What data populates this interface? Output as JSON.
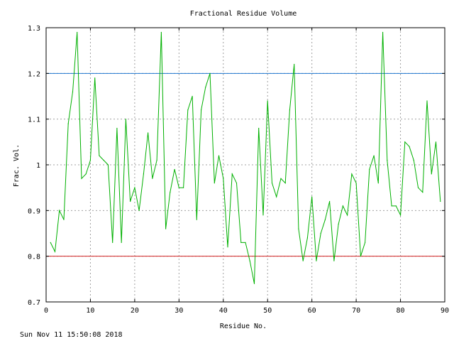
{
  "timestamp": "Sun Nov 11 15:50:08 2018",
  "chart_data": {
    "type": "line",
    "title": "Fractional Residue Volume",
    "xlabel": "Residue No.",
    "ylabel": "Frac. Vol.",
    "xlim": [
      0,
      90
    ],
    "ylim": [
      0.7,
      1.3
    ],
    "xticks": [
      0,
      10,
      20,
      30,
      40,
      50,
      60,
      70,
      80,
      90
    ],
    "xtick_labels": [
      "0",
      "10",
      "20",
      "30",
      "40",
      "50",
      "60",
      "70",
      "80",
      "90"
    ],
    "yticks": [
      0.7,
      0.8,
      0.9,
      1.0,
      1.1,
      1.2,
      1.3
    ],
    "ytick_labels": [
      "0.7",
      "0.8",
      "0.9",
      "1",
      "1.1",
      "1.2",
      "1.3"
    ],
    "grid": true,
    "series": [
      {
        "color": "#00b000",
        "x": [
          1,
          2,
          3,
          4,
          5,
          6,
          7,
          8,
          9,
          10,
          11,
          12,
          13,
          14,
          15,
          16,
          17,
          18,
          19,
          20,
          21,
          22,
          23,
          24,
          25,
          26,
          27,
          28,
          29,
          30,
          31,
          32,
          33,
          34,
          35,
          36,
          37,
          38,
          39,
          40,
          41,
          42,
          43,
          44,
          45,
          46,
          47,
          48,
          49,
          50,
          51,
          52,
          53,
          54,
          55,
          56,
          57,
          58,
          59,
          60,
          61,
          62,
          63,
          64,
          65,
          66,
          67,
          68,
          69,
          70,
          71,
          72,
          73,
          74,
          75,
          76,
          77,
          78,
          79,
          80,
          81,
          82,
          83,
          84,
          85,
          86,
          87,
          88,
          89
        ],
        "y": [
          0.83,
          0.81,
          0.9,
          0.88,
          1.09,
          1.16,
          1.29,
          0.97,
          0.98,
          1.01,
          1.19,
          1.02,
          1.01,
          1.0,
          0.83,
          1.08,
          0.83,
          1.1,
          0.92,
          0.95,
          0.9,
          0.98,
          1.07,
          0.97,
          1.01,
          1.29,
          0.86,
          0.94,
          0.99,
          0.95,
          0.95,
          1.12,
          1.15,
          0.88,
          1.12,
          1.17,
          1.2,
          0.96,
          1.02,
          0.97,
          0.82,
          0.98,
          0.96,
          0.83,
          0.83,
          0.79,
          0.74,
          1.08,
          0.89,
          1.14,
          0.96,
          0.93,
          0.97,
          0.96,
          1.12,
          1.22,
          0.86,
          0.79,
          0.84,
          0.93,
          0.79,
          0.85,
          0.88,
          0.92,
          0.79,
          0.87,
          0.91,
          0.89,
          0.98,
          0.96,
          0.8,
          0.83,
          0.99,
          1.02,
          0.96,
          1.29,
          1.01,
          0.91,
          0.91,
          0.89,
          1.05,
          1.04,
          1.01,
          0.95,
          0.94,
          1.14,
          0.98,
          1.05,
          0.92
        ]
      }
    ],
    "reference_lines": [
      {
        "y": 1.2,
        "color": "#1f77d0"
      },
      {
        "y": 0.8,
        "color": "#d02020"
      }
    ]
  }
}
